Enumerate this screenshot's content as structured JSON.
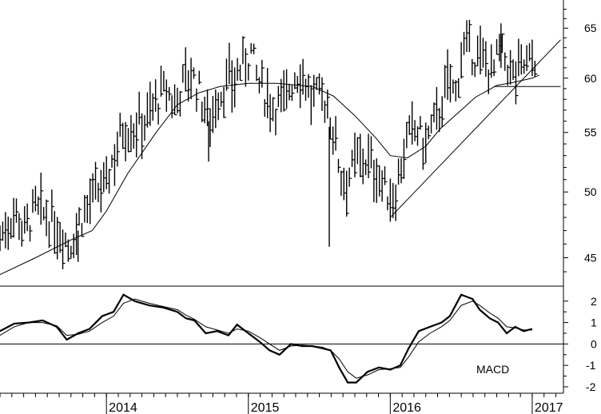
{
  "chart_data": [
    {
      "type": "ohlc",
      "panel": "price",
      "scale": "log",
      "ylim": [
        43,
        68
      ],
      "y_ticks": [
        45,
        50,
        55,
        60,
        65
      ],
      "x_range": [
        2013.25,
        2017.22
      ],
      "moving_average": [
        [
          2013.25,
          43.8
        ],
        [
          2013.5,
          45.0
        ],
        [
          2013.75,
          46.3
        ],
        [
          2013.9,
          47.0
        ],
        [
          2014.0,
          48.5
        ],
        [
          2014.15,
          51.5
        ],
        [
          2014.35,
          55.0
        ],
        [
          2014.5,
          57.5
        ],
        [
          2014.65,
          58.6
        ],
        [
          2014.8,
          59.2
        ],
        [
          2015.0,
          59.5
        ],
        [
          2015.2,
          59.5
        ],
        [
          2015.45,
          59.2
        ],
        [
          2015.6,
          58.3
        ],
        [
          2015.75,
          56.5
        ],
        [
          2015.9,
          54.5
        ],
        [
          2016.0,
          53.0
        ],
        [
          2016.12,
          52.8
        ],
        [
          2016.25,
          53.8
        ],
        [
          2016.35,
          55.3
        ],
        [
          2016.5,
          57.0
        ],
        [
          2016.6,
          58.2
        ],
        [
          2016.75,
          59.3
        ],
        [
          2016.87,
          59.6
        ],
        [
          2017.0,
          60.0
        ],
        [
          2017.05,
          60.3
        ]
      ],
      "price_path": [
        [
          2013.25,
          46.5
        ],
        [
          2013.3,
          47.5
        ],
        [
          2013.36,
          48.5
        ],
        [
          2013.42,
          47.0
        ],
        [
          2013.5,
          48.6
        ],
        [
          2013.58,
          48.0
        ],
        [
          2013.63,
          47.5
        ],
        [
          2013.68,
          47.0
        ],
        [
          2013.74,
          45.8
        ],
        [
          2013.8,
          47.5
        ],
        [
          2013.86,
          48.8
        ],
        [
          2013.94,
          50.0
        ],
        [
          2014.0,
          50.6
        ],
        [
          2014.05,
          53.0
        ],
        [
          2014.12,
          55.5
        ],
        [
          2014.2,
          55.5
        ],
        [
          2014.28,
          56.2
        ],
        [
          2014.35,
          57.8
        ],
        [
          2014.42,
          58.8
        ],
        [
          2014.48,
          57.5
        ],
        [
          2014.55,
          60.0
        ],
        [
          2014.6,
          60.3
        ],
        [
          2014.66,
          58.5
        ],
        [
          2014.72,
          56.0
        ],
        [
          2014.78,
          58.0
        ],
        [
          2014.84,
          59.5
        ],
        [
          2014.9,
          59.8
        ],
        [
          2014.97,
          61.5
        ],
        [
          2015.02,
          62.5
        ],
        [
          2015.07,
          59.5
        ],
        [
          2015.12,
          58.6
        ],
        [
          2015.18,
          57.5
        ],
        [
          2015.25,
          57.8
        ],
        [
          2015.32,
          60.0
        ],
        [
          2015.38,
          60.8
        ],
        [
          2015.44,
          58.0
        ],
        [
          2015.5,
          58.3
        ],
        [
          2015.55,
          57.8
        ],
        [
          2015.6,
          55.0
        ],
        [
          2015.66,
          51.0
        ],
        [
          2015.72,
          51.5
        ],
        [
          2015.78,
          53.0
        ],
        [
          2015.84,
          52.5
        ],
        [
          2015.9,
          51.8
        ],
        [
          2015.95,
          50.5
        ],
        [
          2016.0,
          49.5
        ],
        [
          2016.04,
          50.2
        ],
        [
          2016.08,
          52.5
        ],
        [
          2016.12,
          54.2
        ],
        [
          2016.18,
          55.5
        ],
        [
          2016.24,
          53.8
        ],
        [
          2016.3,
          55.5
        ],
        [
          2016.36,
          57.5
        ],
        [
          2016.42,
          60.0
        ],
        [
          2016.46,
          58.0
        ],
        [
          2016.5,
          62.8
        ],
        [
          2016.56,
          62.5
        ],
        [
          2016.62,
          62.0
        ],
        [
          2016.68,
          61.5
        ],
        [
          2016.72,
          60.5
        ],
        [
          2016.77,
          62.5
        ],
        [
          2016.82,
          61.5
        ],
        [
          2016.87,
          60.0
        ],
        [
          2016.92,
          61.2
        ],
        [
          2016.97,
          61.5
        ],
        [
          2017.02,
          62.0
        ]
      ],
      "spikes": [
        [
          2014.72,
          56.0,
          52.5
        ],
        [
          2015.57,
          55.5,
          45.8
        ],
        [
          2013.8,
          47.0,
          44.7
        ],
        [
          2016.78,
          65.5,
          61.0
        ]
      ],
      "trendlines": [
        {
          "from": [
            2016.0,
            48.0
          ],
          "to": [
            2017.2,
            63.8
          ]
        },
        {
          "from": [
            2016.73,
            59.2
          ],
          "to": [
            2017.2,
            59.2
          ]
        }
      ]
    },
    {
      "type": "line",
      "panel": "indicator",
      "label": "MACD",
      "ylim": [
        -2.3,
        2.7
      ],
      "y_ticks": [
        -2,
        -1,
        0,
        1,
        2
      ],
      "zero_line": true,
      "x_range": [
        2013.25,
        2017.22
      ],
      "x_tick_labels": [
        "2014",
        "2015",
        "2016",
        "2017"
      ],
      "series": [
        {
          "values": [
            [
              2013.25,
              0.6
            ],
            [
              2013.35,
              0.95
            ],
            [
              2013.45,
              1.0
            ],
            [
              2013.55,
              1.1
            ],
            [
              2013.65,
              0.8
            ],
            [
              2013.72,
              0.2
            ],
            [
              2013.8,
              0.5
            ],
            [
              2013.88,
              0.7
            ],
            [
              2013.97,
              1.3
            ],
            [
              2014.05,
              1.5
            ],
            [
              2014.12,
              2.3
            ],
            [
              2014.2,
              2.0
            ],
            [
              2014.3,
              1.8
            ],
            [
              2014.4,
              1.7
            ],
            [
              2014.5,
              1.5
            ],
            [
              2014.56,
              1.2
            ],
            [
              2014.62,
              1.1
            ],
            [
              2014.7,
              0.5
            ],
            [
              2014.78,
              0.6
            ],
            [
              2014.86,
              0.4
            ],
            [
              2014.92,
              0.9
            ],
            [
              2015.0,
              0.5
            ],
            [
              2015.08,
              0.1
            ],
            [
              2015.15,
              -0.3
            ],
            [
              2015.22,
              -0.5
            ],
            [
              2015.3,
              0.0
            ],
            [
              2015.38,
              -0.1
            ],
            [
              2015.45,
              -0.1
            ],
            [
              2015.52,
              -0.2
            ],
            [
              2015.58,
              -0.3
            ],
            [
              2015.64,
              -1.1
            ],
            [
              2015.7,
              -1.8
            ],
            [
              2015.76,
              -1.8
            ],
            [
              2015.84,
              -1.3
            ],
            [
              2015.92,
              -1.1
            ],
            [
              2016.0,
              -1.2
            ],
            [
              2016.07,
              -1.0
            ],
            [
              2016.13,
              -0.2
            ],
            [
              2016.2,
              0.6
            ],
            [
              2016.28,
              0.8
            ],
            [
              2016.36,
              1.0
            ],
            [
              2016.42,
              1.3
            ],
            [
              2016.5,
              2.3
            ],
            [
              2016.58,
              2.1
            ],
            [
              2016.63,
              1.6
            ],
            [
              2016.7,
              1.2
            ],
            [
              2016.76,
              1.0
            ],
            [
              2016.82,
              0.5
            ],
            [
              2016.88,
              0.8
            ],
            [
              2016.94,
              0.6
            ],
            [
              2017.0,
              0.7
            ]
          ]
        },
        {
          "values": [
            [
              2013.25,
              0.4
            ],
            [
              2013.35,
              0.8
            ],
            [
              2013.45,
              1.0
            ],
            [
              2013.55,
              1.0
            ],
            [
              2013.65,
              0.85
            ],
            [
              2013.72,
              0.4
            ],
            [
              2013.8,
              0.45
            ],
            [
              2013.88,
              0.6
            ],
            [
              2013.97,
              1.0
            ],
            [
              2014.05,
              1.3
            ],
            [
              2014.12,
              1.9
            ],
            [
              2014.2,
              2.1
            ],
            [
              2014.3,
              1.9
            ],
            [
              2014.4,
              1.75
            ],
            [
              2014.5,
              1.6
            ],
            [
              2014.56,
              1.35
            ],
            [
              2014.62,
              1.15
            ],
            [
              2014.7,
              0.8
            ],
            [
              2014.78,
              0.65
            ],
            [
              2014.86,
              0.5
            ],
            [
              2014.92,
              0.7
            ],
            [
              2015.0,
              0.6
            ],
            [
              2015.08,
              0.3
            ],
            [
              2015.15,
              0.0
            ],
            [
              2015.22,
              -0.3
            ],
            [
              2015.3,
              -0.1
            ],
            [
              2015.38,
              -0.05
            ],
            [
              2015.45,
              -0.1
            ],
            [
              2015.52,
              -0.15
            ],
            [
              2015.58,
              -0.3
            ],
            [
              2015.64,
              -0.7
            ],
            [
              2015.7,
              -1.3
            ],
            [
              2015.76,
              -1.6
            ],
            [
              2015.84,
              -1.45
            ],
            [
              2015.92,
              -1.2
            ],
            [
              2016.0,
              -1.15
            ],
            [
              2016.07,
              -1.1
            ],
            [
              2016.13,
              -0.6
            ],
            [
              2016.2,
              0.1
            ],
            [
              2016.28,
              0.5
            ],
            [
              2016.36,
              0.8
            ],
            [
              2016.42,
              1.1
            ],
            [
              2016.5,
              1.8
            ],
            [
              2016.58,
              2.0
            ],
            [
              2016.63,
              1.8
            ],
            [
              2016.7,
              1.45
            ],
            [
              2016.76,
              1.2
            ],
            [
              2016.82,
              0.8
            ],
            [
              2016.88,
              0.75
            ],
            [
              2016.94,
              0.65
            ],
            [
              2017.0,
              0.65
            ]
          ]
        }
      ]
    }
  ]
}
